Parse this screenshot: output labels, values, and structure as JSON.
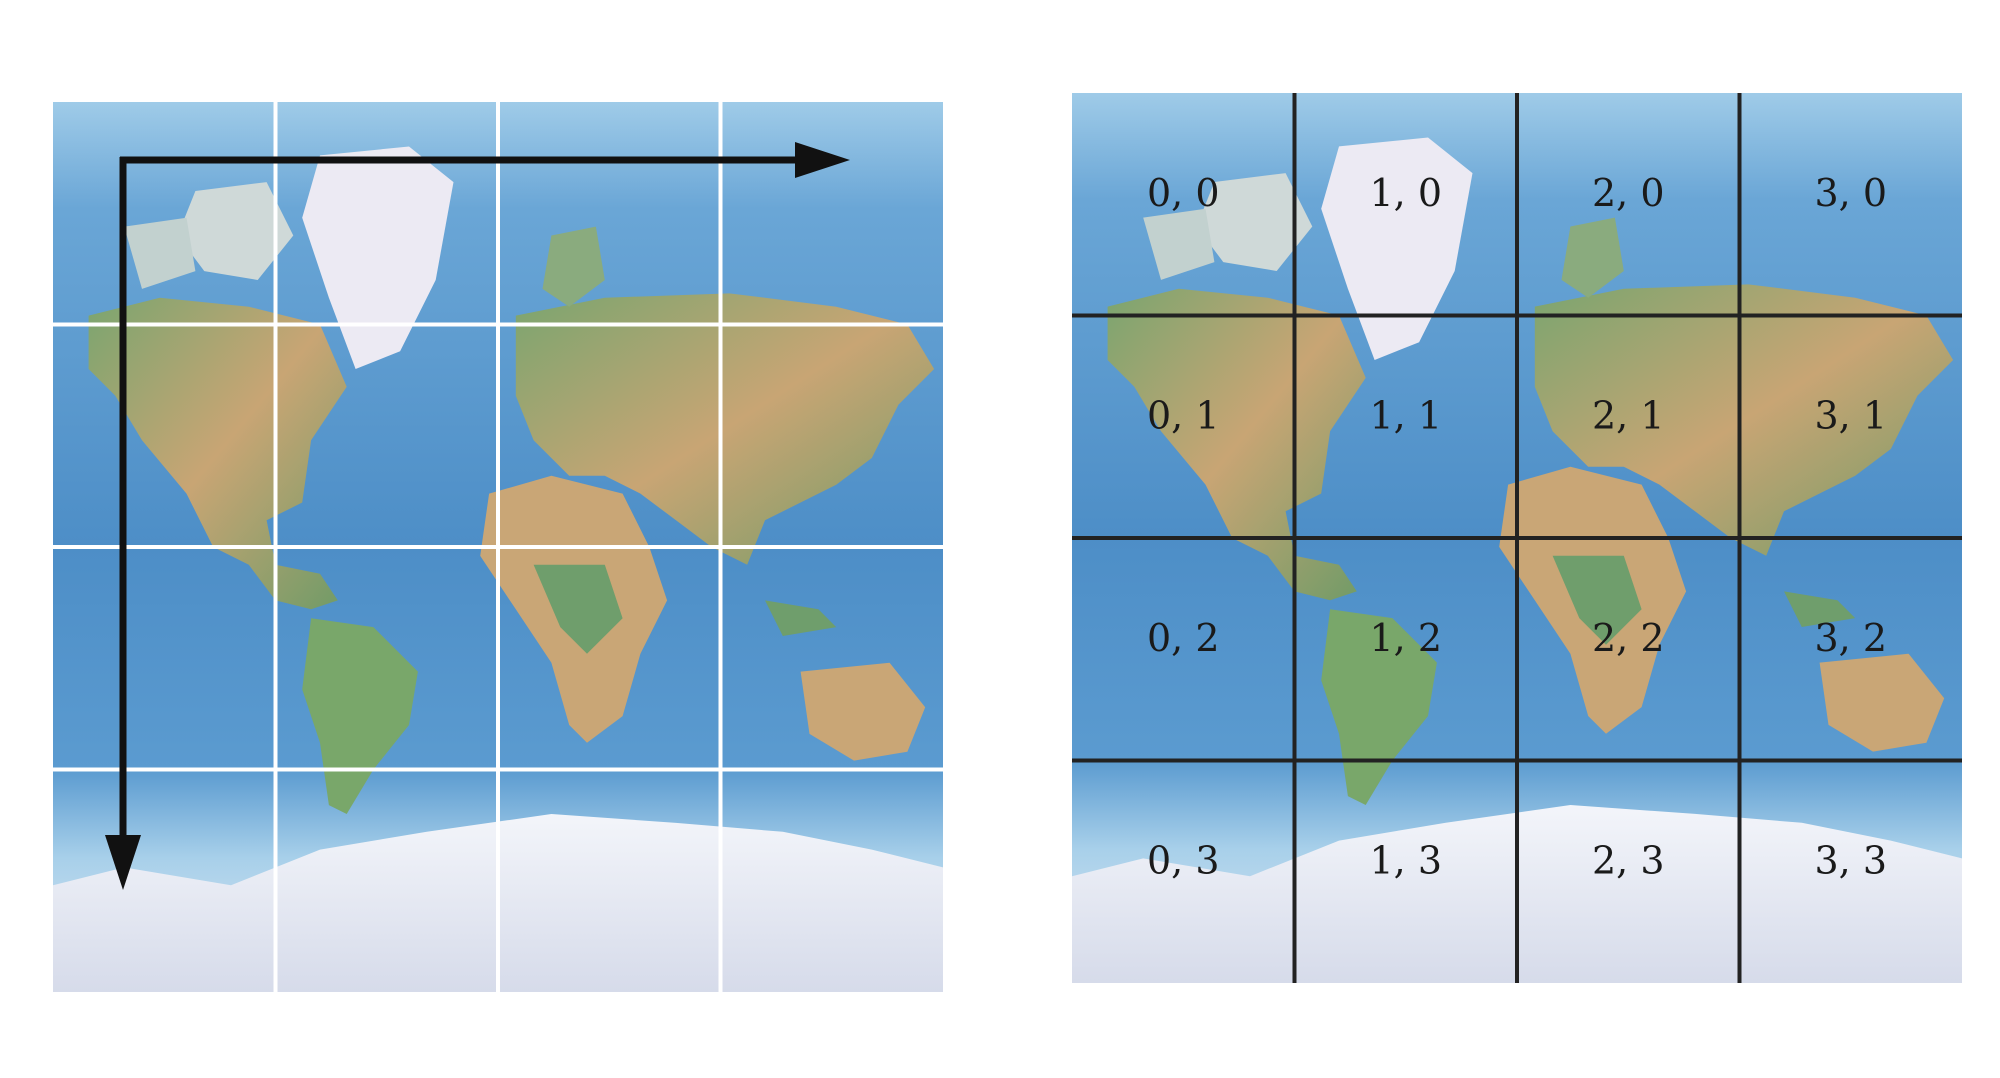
{
  "figure": {
    "left_panel": {
      "description_visible": "",
      "grid": {
        "rows": 4,
        "cols": 4,
        "line_color": "#ffffff"
      },
      "arrows": [
        {
          "direction": "right"
        },
        {
          "direction": "down"
        }
      ]
    },
    "right_panel": {
      "grid": {
        "rows": 4,
        "cols": 4,
        "line_color": "#222222"
      },
      "tiles": [
        [
          "0, 0",
          "1, 0",
          "2, 0",
          "3, 0"
        ],
        [
          "0, 1",
          "1, 1",
          "2, 1",
          "3, 1"
        ],
        [
          "0, 2",
          "1, 2",
          "2, 2",
          "3, 2"
        ],
        [
          "0, 3",
          "1, 3",
          "2, 3",
          "3, 3"
        ]
      ]
    },
    "colors": {
      "ocean": "#4f8fc6",
      "ocean_light": "#8fc2e6",
      "land_green": "#6f9e6c",
      "land_tan": "#c9a676",
      "ice": "#e9ecf5",
      "arrow": "#111111"
    }
  }
}
